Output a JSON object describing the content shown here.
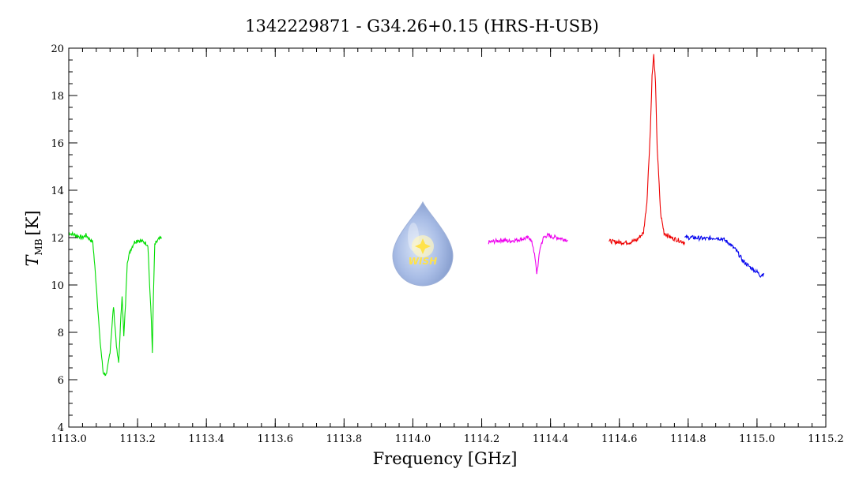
{
  "chart_data": {
    "type": "line",
    "title": "1342229871 - G34.26+0.15 (HRS-H-USB)",
    "xlabel": "Frequency [GHz]",
    "ylabel_main": "T",
    "ylabel_sub": "MB",
    "ylabel_unit": "[K]",
    "xlim": [
      1113.0,
      1115.2
    ],
    "ylim": [
      4,
      20
    ],
    "xticks": [
      1113.0,
      1113.2,
      1113.4,
      1113.6,
      1113.8,
      1114.0,
      1114.2,
      1114.4,
      1114.6,
      1114.8,
      1115.0,
      1115.2
    ],
    "xtick_labels": [
      "1113.0",
      "1113.2",
      "1113.4",
      "1113.6",
      "1113.8",
      "1114.0",
      "1114.2",
      "1114.4",
      "1114.6",
      "1114.8",
      "1115.0",
      "1115.2"
    ],
    "yticks": [
      4,
      6,
      8,
      10,
      12,
      14,
      16,
      18,
      20
    ],
    "ytick_labels": [
      "4",
      "6",
      "8",
      "10",
      "12",
      "14",
      "16",
      "18",
      "20"
    ],
    "grid": false,
    "logo": {
      "text": "WISH"
    },
    "series": [
      {
        "color": "#00dd00",
        "x": [
          1113.0,
          1113.02,
          1113.04,
          1113.05,
          1113.07,
          1113.08,
          1113.09,
          1113.1,
          1113.11,
          1113.12,
          1113.13,
          1113.14,
          1113.145,
          1113.15,
          1113.155,
          1113.16,
          1113.165,
          1113.17,
          1113.18,
          1113.19,
          1113.2,
          1113.22,
          1113.23,
          1113.235,
          1113.24,
          1113.243,
          1113.246,
          1113.25,
          1113.26,
          1113.27
        ],
        "y": [
          12.2,
          12.1,
          12.0,
          12.1,
          11.8,
          10.0,
          7.8,
          6.3,
          6.2,
          7.2,
          9.1,
          7.2,
          6.7,
          8.2,
          9.6,
          7.8,
          9.2,
          11.0,
          11.5,
          11.8,
          11.9,
          11.8,
          11.7,
          10.0,
          8.5,
          7.2,
          9.5,
          11.7,
          11.9,
          12.0
        ]
      },
      {
        "color": "#ee00ee",
        "x": [
          1114.22,
          1114.24,
          1114.26,
          1114.28,
          1114.3,
          1114.32,
          1114.34,
          1114.35,
          1114.355,
          1114.36,
          1114.365,
          1114.37,
          1114.38,
          1114.39,
          1114.4,
          1114.42,
          1114.45
        ],
        "y": [
          11.8,
          11.85,
          11.9,
          11.85,
          11.9,
          11.95,
          12.0,
          11.6,
          11.1,
          10.5,
          11.0,
          11.6,
          12.0,
          12.1,
          12.05,
          12.0,
          11.9
        ]
      },
      {
        "color": "#ee0000",
        "x": [
          1114.57,
          1114.6,
          1114.63,
          1114.65,
          1114.67,
          1114.68,
          1114.69,
          1114.695,
          1114.7,
          1114.705,
          1114.71,
          1114.72,
          1114.73,
          1114.75,
          1114.77,
          1114.79
        ],
        "y": [
          11.85,
          11.8,
          11.8,
          11.9,
          12.2,
          13.5,
          16.5,
          18.8,
          19.7,
          18.5,
          15.8,
          13.0,
          12.2,
          12.0,
          11.9,
          11.8
        ]
      },
      {
        "color": "#0000ee",
        "x": [
          1114.79,
          1114.82,
          1114.85,
          1114.88,
          1114.9,
          1114.92,
          1114.94,
          1114.96,
          1114.98,
          1115.0,
          1115.01,
          1115.02
        ],
        "y": [
          12.0,
          12.0,
          11.95,
          12.0,
          11.95,
          11.75,
          11.45,
          11.0,
          10.75,
          10.55,
          10.4,
          10.5
        ]
      }
    ]
  }
}
